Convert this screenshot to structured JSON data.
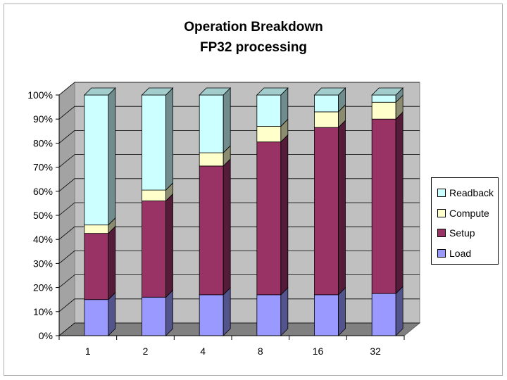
{
  "chart_data": {
    "type": "bar",
    "stacked": true,
    "style": "3d-column",
    "title": "Operation Breakdown",
    "subtitle": "FP32 processing",
    "xlabel": "",
    "ylabel": "",
    "ylim": [
      0,
      100
    ],
    "y_ticks": [
      "0%",
      "10%",
      "20%",
      "30%",
      "40%",
      "50%",
      "60%",
      "70%",
      "80%",
      "90%",
      "100%"
    ],
    "grid": true,
    "legend_position": "right",
    "categories": [
      "1",
      "2",
      "4",
      "8",
      "16",
      "32"
    ],
    "series": [
      {
        "name": "Load",
        "color": "#9999ff",
        "values": [
          15,
          16,
          17,
          17,
          17,
          17.5
        ]
      },
      {
        "name": "Setup",
        "color": "#993366",
        "values": [
          27.5,
          40,
          53.5,
          63.5,
          69.5,
          72.5
        ]
      },
      {
        "name": "Compute",
        "color": "#ffffcc",
        "values": [
          3.5,
          4.5,
          5.5,
          6.5,
          6.5,
          7
        ]
      },
      {
        "name": "Readback",
        "color": "#ccffff",
        "values": [
          54,
          39.5,
          24,
          13,
          7,
          3
        ]
      }
    ],
    "legend_order": [
      "Readback",
      "Compute",
      "Setup",
      "Load"
    ]
  },
  "colors": {
    "wall": "#c0c0c0",
    "floor": "#808080",
    "gridline": "#000000"
  }
}
